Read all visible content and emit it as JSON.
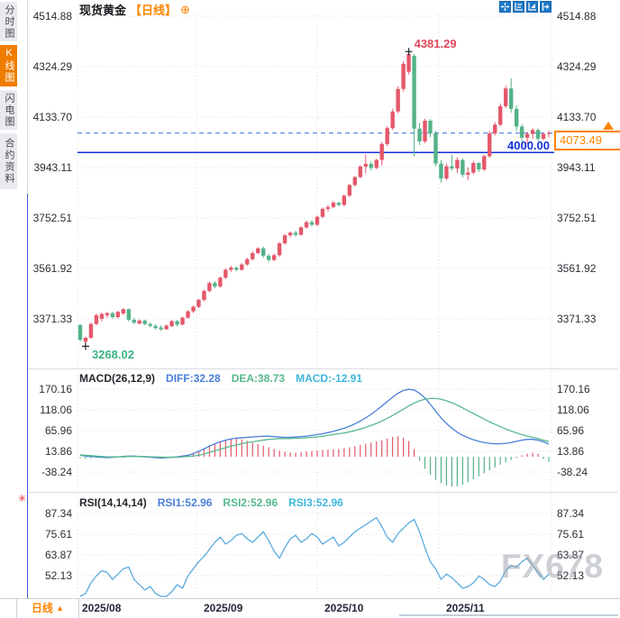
{
  "header": {
    "symbol": "现货黄金",
    "period_tag": "【日线】",
    "add_icon": "⊕"
  },
  "toolbar": {
    "icons": [
      "pan-crosshair",
      "axis-scale",
      "box-zoom",
      "exit-zoom"
    ]
  },
  "sidebar": {
    "tabs": [
      {
        "label": "分时图",
        "active": false
      },
      {
        "label": "K线图",
        "active": true
      },
      {
        "label": "闪电图",
        "active": false
      },
      {
        "label": "合约资料",
        "active": false
      }
    ]
  },
  "main_chart": {
    "y_axis": [
      "4514.88",
      "4324.29",
      "4133.70",
      "3943.11",
      "3752.51",
      "3561.92",
      "3371.33"
    ],
    "high_label": "4381.29",
    "low_label": "3268.02",
    "support_label": "4000.00",
    "last_price_label": "4073.49"
  },
  "macd_panel": {
    "title": "MACD(26,12,9)",
    "diff": "DIFF:32.28",
    "dea": "DEA:38.73",
    "macd": "MACD:-12.91",
    "y_axis": [
      "170.16",
      "118.06",
      "65.96",
      "13.86",
      "-38.24"
    ]
  },
  "rsi_panel": {
    "title": "RSI(14,14,14)",
    "rsi1": "RSI1:52.96",
    "rsi2": "RSI2:52.96",
    "rsi3": "RSI3:52.96",
    "y_axis": [
      "87.34",
      "75.61",
      "63.87",
      "52.13"
    ]
  },
  "bottom_bar": {
    "period_label": "日线",
    "period_arrow": "▲",
    "x_labels": [
      "2025/08",
      "2025/09",
      "2025/10",
      "2025/11"
    ]
  },
  "watermark": "FX678",
  "colors": {
    "up": "#e4586a",
    "down": "#54b287",
    "accent_orange": "#ff8400",
    "support_line": "#1430d8",
    "dashed_line": "#4a82dd",
    "diff_line": "#4a7fd8",
    "dea_line": "#57b98c",
    "rsi_line": "#5aabdf",
    "grid": "#dcdde3",
    "marker": "#222222"
  },
  "chart_data": {
    "type": "candlestick",
    "symbol": "现货黄金",
    "period": "日线",
    "x_labels": [
      "2025/08",
      "2025/09",
      "2025/10",
      "2025/11"
    ],
    "price_axis": [
      4514.88,
      4324.29,
      4133.7,
      3943.11,
      3752.51,
      3561.92,
      3371.33
    ],
    "high_point": 4381.29,
    "low_point": 3268.02,
    "support_line": 4000.0,
    "last_price": 4073.49,
    "candles_ohlc": [
      [
        3348,
        3352,
        3286,
        3292
      ],
      [
        3285,
        3305,
        3268.02,
        3300
      ],
      [
        3300,
        3358,
        3296,
        3352
      ],
      [
        3352,
        3392,
        3348,
        3385
      ],
      [
        3372,
        3395,
        3362,
        3390
      ],
      [
        3385,
        3398,
        3375,
        3393
      ],
      [
        3393,
        3399,
        3372,
        3378
      ],
      [
        3378,
        3402,
        3373,
        3398
      ],
      [
        3392,
        3412,
        3386,
        3408
      ],
      [
        3408,
        3411,
        3362,
        3368
      ],
      [
        3368,
        3375,
        3352,
        3357
      ],
      [
        3354,
        3370,
        3350,
        3365
      ],
      [
        3365,
        3369,
        3347,
        3352
      ],
      [
        3352,
        3358,
        3339,
        3345
      ],
      [
        3345,
        3352,
        3331,
        3337
      ],
      [
        3339,
        3347,
        3326,
        3332
      ],
      [
        3332,
        3350,
        3330,
        3346
      ],
      [
        3344,
        3368,
        3340,
        3363
      ],
      [
        3363,
        3367,
        3344,
        3350
      ],
      [
        3350,
        3380,
        3347,
        3376
      ],
      [
        3376,
        3404,
        3372,
        3400
      ],
      [
        3400,
        3422,
        3394,
        3417
      ],
      [
        3417,
        3448,
        3412,
        3443
      ],
      [
        3443,
        3482,
        3438,
        3477
      ],
      [
        3477,
        3512,
        3472,
        3507
      ],
      [
        3507,
        3514,
        3487,
        3494
      ],
      [
        3494,
        3532,
        3490,
        3527
      ],
      [
        3527,
        3562,
        3522,
        3557
      ],
      [
        3557,
        3572,
        3549,
        3565
      ],
      [
        3565,
        3570,
        3551,
        3557
      ],
      [
        3557,
        3582,
        3553,
        3577
      ],
      [
        3577,
        3602,
        3572,
        3597
      ],
      [
        3597,
        3627,
        3592,
        3620
      ],
      [
        3620,
        3642,
        3615,
        3638
      ],
      [
        3638,
        3645,
        3602,
        3610
      ],
      [
        3610,
        3617,
        3587,
        3594
      ],
      [
        3594,
        3618,
        3590,
        3612
      ],
      [
        3612,
        3662,
        3607,
        3657
      ],
      [
        3657,
        3692,
        3652,
        3687
      ],
      [
        3687,
        3702,
        3679,
        3697
      ],
      [
        3697,
        3704,
        3682,
        3689
      ],
      [
        3689,
        3722,
        3685,
        3717
      ],
      [
        3717,
        3742,
        3712,
        3737
      ],
      [
        3737,
        3744,
        3720,
        3727
      ],
      [
        3727,
        3762,
        3722,
        3757
      ],
      [
        3757,
        3792,
        3752,
        3787
      ],
      [
        3787,
        3802,
        3777,
        3794
      ],
      [
        3794,
        3817,
        3790,
        3810
      ],
      [
        3810,
        3814,
        3797,
        3802
      ],
      [
        3802,
        3842,
        3797,
        3837
      ],
      [
        3837,
        3882,
        3832,
        3877
      ],
      [
        3877,
        3912,
        3872,
        3907
      ],
      [
        3907,
        3952,
        3902,
        3947
      ],
      [
        3947,
        3992,
        3922,
        3957
      ],
      [
        3957,
        3967,
        3932,
        3942
      ],
      [
        3942,
        3977,
        3937,
        3972
      ],
      [
        3972,
        4040,
        3952,
        4032
      ],
      [
        4032,
        4100,
        4024,
        4092
      ],
      [
        4092,
        4165,
        4085,
        4155
      ],
      [
        4155,
        4250,
        4148,
        4240
      ],
      [
        4240,
        4345,
        4230,
        4335
      ],
      [
        4305,
        4381.29,
        4295,
        4372
      ],
      [
        4365,
        4372,
        3985,
        4090
      ],
      [
        4090,
        4112,
        4028,
        4042
      ],
      [
        4042,
        4128,
        4036,
        4120
      ],
      [
        4120,
        4126,
        4058,
        4072
      ],
      [
        4072,
        4082,
        3948,
        3958
      ],
      [
        3958,
        3972,
        3886,
        3902
      ],
      [
        3902,
        3958,
        3896,
        3948
      ],
      [
        3948,
        3992,
        3932,
        3940
      ],
      [
        3940,
        3982,
        3922,
        3972
      ],
      [
        3972,
        3978,
        3906,
        3916
      ],
      [
        3916,
        3944,
        3896,
        3924
      ],
      [
        3924,
        3968,
        3918,
        3960
      ],
      [
        3960,
        3964,
        3926,
        3936
      ],
      [
        3936,
        3992,
        3930,
        3986
      ],
      [
        3986,
        4082,
        3980,
        4072
      ],
      [
        4072,
        4115,
        4064,
        4105
      ],
      [
        4105,
        4185,
        4098,
        4175
      ],
      [
        4175,
        4252,
        4168,
        4242
      ],
      [
        4242,
        4280,
        4150,
        4165
      ],
      [
        4165,
        4178,
        4082,
        4098
      ],
      [
        4098,
        4108,
        4040,
        4056
      ],
      [
        4056,
        4078,
        4032,
        4070
      ],
      [
        4070,
        4092,
        4052,
        4085
      ],
      [
        4085,
        4090,
        4042,
        4052
      ],
      [
        4052,
        4076,
        4046,
        4070
      ],
      [
        4070,
        4082,
        4058,
        4073.49
      ]
    ],
    "macd": {
      "params": "26,12,9",
      "diff_last": 32.28,
      "dea_last": 38.73,
      "macd_last": -12.91,
      "axis": [
        170.16,
        118.06,
        65.96,
        13.86,
        -38.24
      ],
      "diff": [
        4,
        2,
        1,
        0,
        -1,
        -2,
        -1,
        0,
        1,
        2,
        2,
        1,
        0,
        -1,
        -2,
        -3,
        -2,
        -1,
        0,
        2,
        4,
        8,
        14,
        20,
        27,
        33,
        38,
        42,
        45,
        47,
        48,
        49,
        50,
        51,
        52,
        52,
        51,
        50,
        49,
        49,
        50,
        51,
        52,
        54,
        56,
        58,
        61,
        64,
        68,
        72,
        77,
        83,
        90,
        98,
        107,
        117,
        128,
        139,
        150,
        160,
        167,
        170,
        168,
        160,
        148,
        132,
        115,
        98,
        84,
        72,
        62,
        54,
        48,
        43,
        39,
        36,
        34,
        33,
        33,
        34,
        36,
        39,
        42,
        44,
        44,
        42,
        38,
        32.28
      ],
      "dea": [
        5,
        4,
        3,
        2,
        1,
        0,
        0,
        0,
        0,
        1,
        1,
        1,
        1,
        0,
        0,
        -1,
        -1,
        -1,
        -1,
        0,
        1,
        2,
        4,
        7,
        11,
        15,
        19,
        23,
        27,
        30,
        33,
        36,
        38,
        40,
        42,
        44,
        45,
        46,
        46,
        46,
        47,
        47,
        48,
        49,
        50,
        52,
        54,
        56,
        58,
        60,
        63,
        66,
        70,
        74,
        79,
        84,
        90,
        97,
        104,
        112,
        120,
        128,
        135,
        141,
        145,
        147,
        147,
        145,
        141,
        136,
        130,
        123,
        116,
        109,
        102,
        95,
        88,
        82,
        76,
        70,
        65,
        60,
        56,
        52,
        49,
        46,
        42,
        38.73
      ],
      "hist": [
        -3,
        -5,
        -4,
        -3,
        -2,
        -2,
        -1,
        1,
        2,
        3,
        2,
        1,
        -1,
        -2,
        -3,
        -4,
        -2,
        -1,
        1,
        3,
        5,
        10,
        16,
        22,
        28,
        33,
        38,
        42,
        45,
        46,
        44,
        40,
        36,
        32,
        28,
        24,
        20,
        16,
        13,
        11,
        10,
        12,
        14,
        15,
        16,
        17,
        18,
        19,
        20,
        22,
        24,
        27,
        30,
        33,
        36,
        39,
        42,
        46,
        50,
        52,
        48,
        40,
        20,
        -10,
        -30,
        -45,
        -58,
        -66,
        -72,
        -75,
        -74,
        -70,
        -64,
        -57,
        -49,
        -41,
        -34,
        -27,
        -20,
        -14,
        -8,
        -3,
        4,
        8,
        10,
        8,
        -6,
        -12.91
      ]
    },
    "rsi": {
      "params": "14,14,14",
      "rsi1_last": 52.96,
      "rsi2_last": 52.96,
      "rsi3_last": 52.96,
      "axis": [
        87.34,
        75.61,
        63.87,
        52.13
      ],
      "values": [
        35,
        42,
        48,
        52,
        55,
        54,
        50,
        53,
        56,
        57,
        50,
        47,
        44,
        46,
        42,
        40,
        38,
        43,
        47,
        45,
        52,
        56,
        60,
        63,
        67,
        71,
        74,
        70,
        72,
        75,
        76,
        73,
        71,
        74,
        77,
        72,
        66,
        62,
        68,
        73,
        75,
        71,
        73,
        76,
        74,
        70,
        72,
        74,
        69,
        71,
        74,
        77,
        79,
        81,
        83,
        85,
        80,
        74,
        71,
        76,
        79,
        82,
        84,
        77,
        68,
        60,
        56,
        50,
        53,
        51,
        48,
        45,
        46,
        48,
        52,
        50,
        47,
        46,
        49,
        55,
        58,
        57,
        60,
        62,
        58,
        54,
        50,
        52.96
      ]
    }
  }
}
